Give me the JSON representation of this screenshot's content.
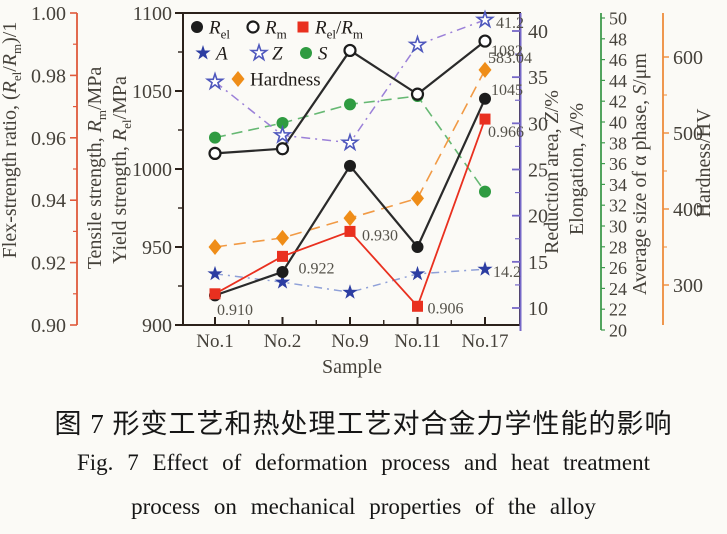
{
  "caption": {
    "zh": "图 7  形变工艺和热处理工艺对合金力学性能的影响",
    "en_line1": "Fig. 7   Effect of deformation process and heat treatment",
    "en_line2": "process on mechanical properties of the alloy",
    "figure_number_zh": "图 7",
    "figure_number_en": "Fig. 7"
  },
  "chart_data": {
    "type": "line",
    "categories": [
      "No.1",
      "No.2",
      "No.9",
      "No.11",
      "No.17"
    ],
    "xlabel": "Sample",
    "grid": false,
    "legend_position": "top-left-inside",
    "axes": {
      "ratio": {
        "title_rich": [
          [
            "Flex-strength ratio, (",
            ""
          ],
          [
            "R",
            "i"
          ],
          [
            "el",
            "s"
          ],
          [
            "/",
            ""
          ],
          [
            "R",
            "i"
          ],
          [
            "m",
            "s"
          ],
          [
            ")/1",
            ""
          ]
        ],
        "range": [
          0.9,
          1.0
        ],
        "tick_labels": [
          "0.90",
          "0.92",
          "0.94",
          "0.96",
          "0.98",
          "1.00"
        ],
        "minor_ticks": [
          0.91,
          0.93,
          0.95,
          0.97,
          0.99
        ],
        "color": "#e05a3c"
      },
      "strength": {
        "title_rich_1": [
          [
            "Tensile strength, ",
            ""
          ],
          [
            "R",
            "i"
          ],
          [
            "m",
            "s"
          ],
          [
            "/MPa",
            ""
          ]
        ],
        "title_rich_2": [
          [
            "Yield strength, ",
            ""
          ],
          [
            "R",
            "i"
          ],
          [
            "el",
            "s"
          ],
          [
            "/MPa",
            ""
          ]
        ],
        "range": [
          900,
          1100
        ],
        "ticks": [
          900,
          950,
          1000,
          1050,
          1100
        ],
        "minor_ticks": [
          925,
          975,
          1025,
          1075
        ],
        "color": "#2b211a"
      },
      "za": {
        "title_rich_1": [
          [
            "Reduction area, ",
            ""
          ],
          [
            "Z",
            "i"
          ],
          [
            "/%",
            ""
          ]
        ],
        "title_rich_2": [
          [
            "Elongation, ",
            ""
          ],
          [
            "A",
            "i"
          ],
          [
            "/%",
            ""
          ]
        ],
        "range": [
          10,
          40
        ],
        "ticks": [
          10,
          15,
          20,
          25,
          30,
          35,
          40
        ],
        "minor_ticks": [
          12.5,
          17.5,
          22.5,
          27.5,
          32.5,
          37.5
        ],
        "color": "#7668c8"
      },
      "s": {
        "title_rich": [
          [
            "Average size of α phase, ",
            ""
          ],
          [
            "S",
            "i"
          ],
          [
            "/μm",
            ""
          ]
        ],
        "range": [
          20,
          50
        ],
        "ticks": [
          20,
          22,
          24,
          26,
          28,
          30,
          32,
          34,
          36,
          38,
          40,
          42,
          44,
          46,
          48,
          50
        ],
        "color": "#3f9a4d"
      },
      "hv": {
        "title_rich": [
          [
            "Hardness/HV",
            ""
          ]
        ],
        "range": [
          300,
          600
        ],
        "ticks": [
          300,
          400,
          500,
          600
        ],
        "minor_ticks": [
          350,
          450,
          550
        ],
        "color": "#ee8c3c"
      }
    },
    "series": [
      {
        "name": "S",
        "legend_rich": [
          [
            "S",
            "i"
          ]
        ],
        "axis": "s",
        "marker": "circle",
        "color": "#2f9b41",
        "line_color": "#66b873",
        "dash": "11 6",
        "width": 1.6,
        "values": [
          38.5,
          39.9,
          41.7,
          42.5,
          33.3
        ],
        "point_labels": {}
      },
      {
        "name": "Hardness",
        "legend_rich": [
          [
            "Hardness",
            ""
          ]
        ],
        "axis": "hv",
        "marker": "diamond",
        "color": "#ef8d18",
        "line_color": "#f19a45",
        "dash": "12 7",
        "width": 1.6,
        "values": [
          350,
          362,
          388,
          414,
          583.04
        ],
        "point_labels": {
          "4": "583.04"
        }
      },
      {
        "name": "Z",
        "legend_rich": [
          [
            "Z",
            "i"
          ]
        ],
        "axis": "za",
        "marker": "star-open",
        "color": "#4f58bd",
        "line_color": "#9b80d8",
        "dash": "9 5 2 5",
        "width": 1.5,
        "values": [
          34.5,
          28.7,
          27.9,
          38.5,
          41.2
        ],
        "point_labels": {
          "4": "41.2"
        }
      },
      {
        "name": "A",
        "legend_rich": [
          [
            "A",
            "i"
          ]
        ],
        "axis": "za",
        "marker": "star",
        "color": "#2c3da2",
        "line_color": "#8fa0d8",
        "dash": "8 5 2 5",
        "width": 1.5,
        "values": [
          13.7,
          12.8,
          11.7,
          13.7,
          14.2
        ],
        "point_labels": {
          "4": "14.2"
        }
      },
      {
        "name": "Rm",
        "legend_rich": [
          [
            "R",
            "i"
          ],
          [
            "m",
            "s"
          ]
        ],
        "axis": "strength",
        "marker": "circle-open",
        "color": "#1c1c1c",
        "line_color": "#2a2a2a",
        "dash": "",
        "width": 2.2,
        "values": [
          1010,
          1013,
          1076,
          1048,
          1082
        ],
        "point_labels": {
          "4": "1082"
        }
      },
      {
        "name": "Rel",
        "legend_rich": [
          [
            "R",
            "i"
          ],
          [
            "el",
            "s"
          ]
        ],
        "axis": "strength",
        "marker": "circle",
        "color": "#1c1c1c",
        "line_color": "#2a2a2a",
        "dash": "",
        "width": 2.2,
        "values": [
          919,
          934,
          1002,
          950,
          1045
        ],
        "point_labels": {
          "4": "1045"
        }
      },
      {
        "name": "ratio",
        "legend_rich": [
          [
            "R",
            "i"
          ],
          [
            "el",
            "s"
          ],
          [
            "/",
            ""
          ],
          [
            "R",
            "i"
          ],
          [
            "m",
            "s"
          ]
        ],
        "axis": "ratio",
        "marker": "square",
        "color": "#e9301f",
        "line_color": "#e9301f",
        "dash": "",
        "width": 1.8,
        "values": [
          0.91,
          0.922,
          0.93,
          0.906,
          0.966
        ],
        "point_labels": {
          "0": "0.910",
          "1": "0.922",
          "2": "0.930",
          "3": "0.906",
          "4": "0.966"
        }
      }
    ],
    "legend_rows": [
      [
        "Rel",
        "Rm",
        "ratio"
      ],
      [
        "A",
        "Z",
        "S"
      ],
      [
        "Hardness"
      ]
    ]
  },
  "colors": {
    "background": "#fbfaf6",
    "plot_border": "#2b211a",
    "tick_text": "#45413a",
    "point_label_text": "#55524a"
  }
}
